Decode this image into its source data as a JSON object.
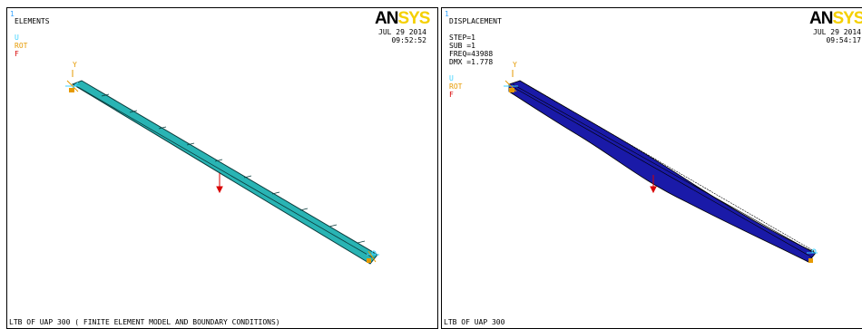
{
  "left": {
    "window_number": "1",
    "title": "ELEMENTS",
    "legend": {
      "u": "U",
      "rot": "ROT",
      "f": "F"
    },
    "logo": {
      "an": "AN",
      "sys": "SYS"
    },
    "date": "JUL 29 2014",
    "time": "09:52:52",
    "axis_label": "Y",
    "caption": "LTB OF UAP 300 ( FINITE ELEMENT MODEL AND BOUNDARY CONDITIONS)",
    "colors": {
      "beam_fill": "#29b4b4",
      "beam_edge": "#0a3b3b"
    }
  },
  "right": {
    "window_number": "1",
    "title": "DISPLACEMENT",
    "step": "STEP=1",
    "sub": "SUB =1",
    "freq": "FREQ=43988",
    "dmx": "DMX =1.778",
    "legend": {
      "u": "U",
      "rot": "ROT",
      "f": "F"
    },
    "logo": {
      "an": "AN",
      "sys": "SYS"
    },
    "date": "JUL 29 2014",
    "time": "09:54:17",
    "axis_label": "Y",
    "caption": "LTB OF UAP 300",
    "colors": {
      "beam_fill": "#1a1aa8",
      "beam_edge": "#000000"
    }
  }
}
